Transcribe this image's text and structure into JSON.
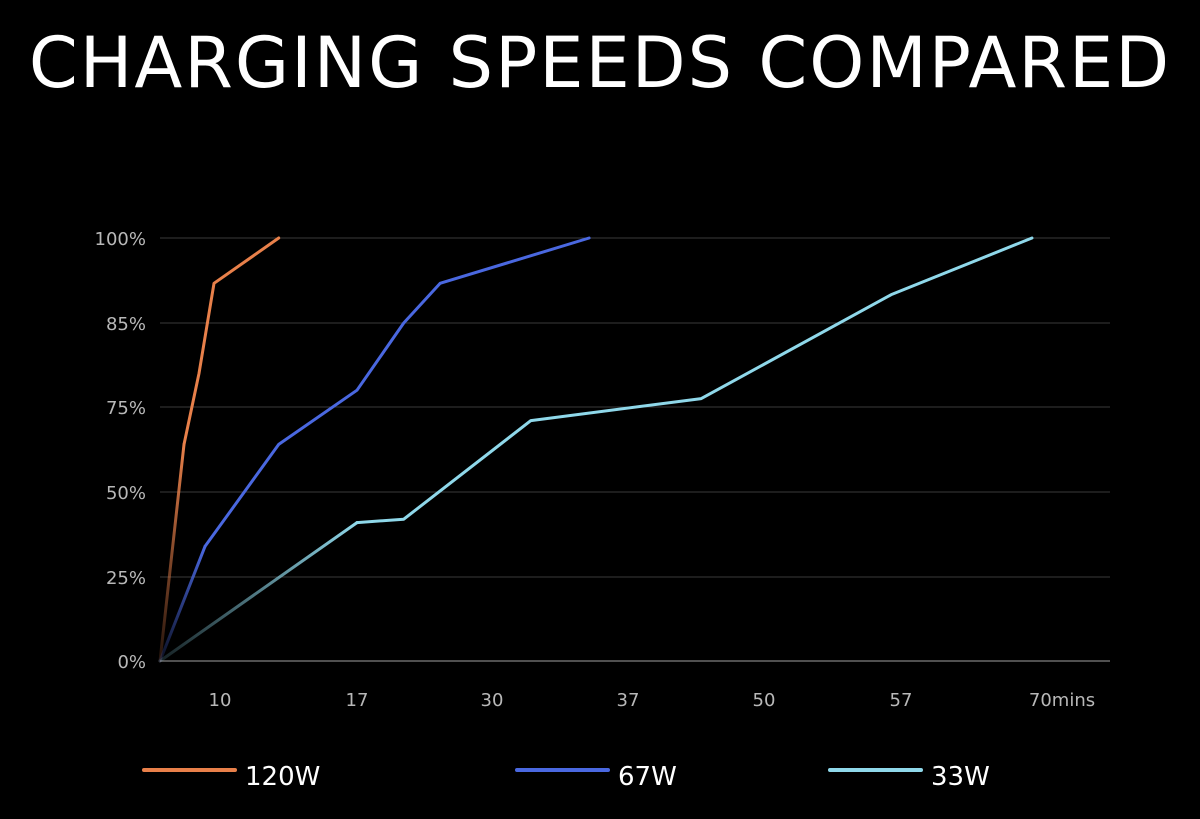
{
  "title": "CHARGING SPEEDS COMPARED",
  "chart_data": {
    "type": "line",
    "title": "CHARGING SPEEDS COMPARED",
    "y_ticks": [
      {
        "value": 0,
        "label": "0%"
      },
      {
        "value": 25,
        "label": "25%"
      },
      {
        "value": 50,
        "label": "50%"
      },
      {
        "value": 75,
        "label": "75%"
      },
      {
        "value": 85,
        "label": "85%"
      },
      {
        "value": 100,
        "label": "100%"
      }
    ],
    "x_ticks": [
      {
        "value": 10,
        "label": "10"
      },
      {
        "value": 17,
        "label": "17"
      },
      {
        "value": 30,
        "label": "30"
      },
      {
        "value": 37,
        "label": "37"
      },
      {
        "value": 50,
        "label": "50"
      },
      {
        "value": 57,
        "label": "57"
      },
      {
        "value": 70,
        "label": "70mins"
      }
    ],
    "grid": true,
    "legend_position": "bottom",
    "series": [
      {
        "name": "120W",
        "color": "#e8804a",
        "points": [
          [
            0,
            0
          ],
          [
            4,
            64
          ],
          [
            6.5,
            79
          ],
          [
            9,
            92
          ],
          [
            13,
            100
          ]
        ]
      },
      {
        "name": "67W",
        "color": "#4a68e0",
        "points": [
          [
            0,
            0
          ],
          [
            7.5,
            34
          ],
          [
            13,
            64
          ],
          [
            17,
            77
          ],
          [
            21.5,
            85
          ],
          [
            25,
            92
          ],
          [
            35,
            100
          ]
        ]
      },
      {
        "name": "33W",
        "color": "#8fd8ea",
        "points": [
          [
            0,
            0
          ],
          [
            17,
            41
          ],
          [
            21.5,
            42
          ],
          [
            32,
            71
          ],
          [
            44,
            76
          ],
          [
            56.5,
            90
          ],
          [
            70,
            100
          ]
        ]
      }
    ]
  }
}
